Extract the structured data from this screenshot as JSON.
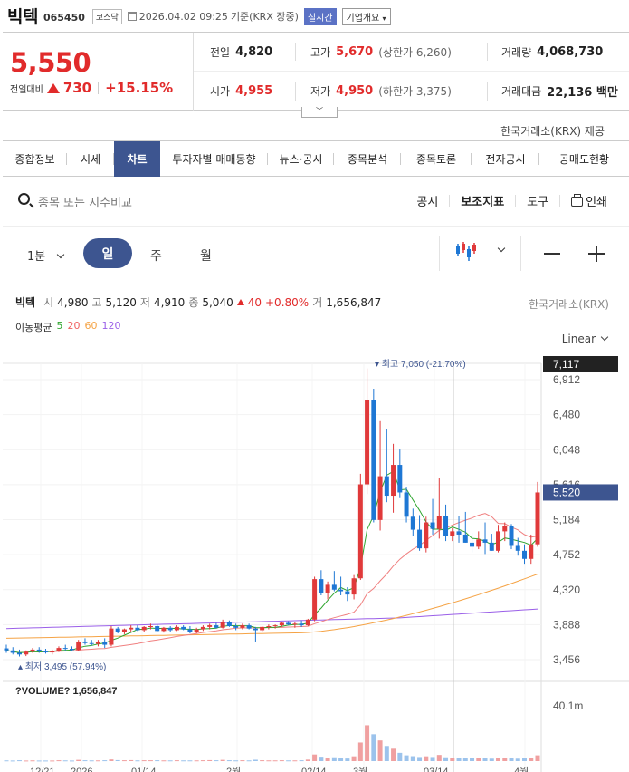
{
  "header": {
    "name": "빅텍",
    "code": "065450",
    "market": "코스닥",
    "datetime": "2026.04.02 09:25",
    "basis": "기준(KRX 장중)",
    "live_label": "실시간",
    "corp_label": "기업개요"
  },
  "quote": {
    "price": "5,550",
    "change_label": "전일대비",
    "change": "730",
    "change_pct": "+15.15%",
    "prev_label": "전일",
    "prev": "4,820",
    "high_label": "고가",
    "high": "5,670",
    "upper_limit": "(상한가 6,260)",
    "volume_label": "거래량",
    "volume": "4,068,730",
    "open_label": "시가",
    "open": "4,955",
    "low_label": "저가",
    "low": "4,950",
    "lower_limit": "(하한가 3,375)",
    "amount_label": "거래대금",
    "amount": "22,136 백만"
  },
  "provider": "한국거래소(KRX) 제공",
  "tabs": [
    "종합정보",
    "시세",
    "차트",
    "투자자별 매매동향",
    "뉴스·공시",
    "종목분석",
    "종목토론",
    "전자공시",
    "공매도현황"
  ],
  "toolbar": {
    "search_placeholder": "종목 또는 지수비교",
    "notice": "공시",
    "indicator": "보조지표",
    "tools": "도구",
    "print": "인쇄",
    "minute": "1분",
    "day": "일",
    "week": "주",
    "month": "월"
  },
  "info": {
    "name": "빅텍",
    "open_k": "시",
    "open": "4,980",
    "high_k": "고",
    "high": "5,120",
    "low_k": "저",
    "low": "4,910",
    "close_k": "종",
    "close": "5,040",
    "chg": "40",
    "chg_pct": "+0.80%",
    "vol_k": "거",
    "vol": "1,656,847",
    "exchange": "한국거래소(KRX)",
    "ma_label": "이동평균",
    "ma": [
      "5",
      "20",
      "60",
      "120"
    ],
    "scale": "Linear"
  },
  "colors": {
    "up": "#e0393a",
    "down": "#1e77d4",
    "ma5": "#2ea52e",
    "ma20": "#f08080",
    "ma60": "#f5a345",
    "ma120": "#9a5fe8",
    "accent": "#3d5590"
  },
  "chart_data": {
    "type": "candlestick",
    "y_ticks": [
      "6,912",
      "6,480",
      "6,048",
      "5,616",
      "5,184",
      "4,752",
      "4,320",
      "3,888",
      "3,456"
    ],
    "price_labels": {
      "top": "7,117",
      "current": "5,520"
    },
    "high_marker": "최고 7,050 (-21.70%)",
    "low_marker": "최저 3,495 (57.94%)",
    "x_labels": [
      "12/21",
      "2026",
      "01/14",
      "2월",
      "02/14",
      "3월",
      "03/14",
      "4월"
    ],
    "volume_label": "?VOLUME? 1,656,847",
    "volume_tick": "40.1m",
    "candles": [
      [
        3595,
        3640,
        3540,
        3570
      ],
      [
        3570,
        3610,
        3520,
        3540
      ],
      [
        3540,
        3580,
        3495,
        3520
      ],
      [
        3520,
        3570,
        3500,
        3555
      ],
      [
        3555,
        3600,
        3540,
        3580
      ],
      [
        3580,
        3610,
        3540,
        3560
      ],
      [
        3560,
        3590,
        3530,
        3545
      ],
      [
        3545,
        3580,
        3520,
        3560
      ],
      [
        3560,
        3620,
        3550,
        3600
      ],
      [
        3600,
        3640,
        3570,
        3590
      ],
      [
        3590,
        3620,
        3560,
        3575
      ],
      [
        3575,
        3700,
        3560,
        3680
      ],
      [
        3680,
        3720,
        3640,
        3660
      ],
      [
        3660,
        3700,
        3630,
        3650
      ],
      [
        3650,
        3700,
        3620,
        3680
      ],
      [
        3680,
        3720,
        3600,
        3640
      ],
      [
        3640,
        3870,
        3620,
        3840
      ],
      [
        3840,
        3860,
        3780,
        3800
      ],
      [
        3800,
        3840,
        3770,
        3830
      ],
      [
        3830,
        3880,
        3800,
        3850
      ],
      [
        3850,
        3880,
        3810,
        3820
      ],
      [
        3820,
        3870,
        3800,
        3860
      ],
      [
        3860,
        3900,
        3830,
        3870
      ],
      [
        3870,
        3890,
        3800,
        3810
      ],
      [
        3810,
        3860,
        3790,
        3850
      ],
      [
        3850,
        3870,
        3800,
        3820
      ],
      [
        3820,
        3880,
        3810,
        3860
      ],
      [
        3860,
        3880,
        3820,
        3830
      ],
      [
        3830,
        3870,
        3780,
        3800
      ],
      [
        3800,
        3850,
        3780,
        3830
      ],
      [
        3830,
        3880,
        3810,
        3860
      ],
      [
        3860,
        3900,
        3830,
        3880
      ],
      [
        3880,
        3910,
        3840,
        3850
      ],
      [
        3850,
        3950,
        3840,
        3920
      ],
      [
        3920,
        3940,
        3860,
        3870
      ],
      [
        3870,
        3900,
        3820,
        3850
      ],
      [
        3850,
        3900,
        3830,
        3880
      ],
      [
        3880,
        3900,
        3830,
        3840
      ],
      [
        3840,
        3860,
        3680,
        3820
      ],
      [
        3820,
        3870,
        3800,
        3860
      ],
      [
        3860,
        3890,
        3830,
        3870
      ],
      [
        3870,
        3890,
        3840,
        3880
      ],
      [
        3880,
        3920,
        3860,
        3910
      ],
      [
        3910,
        3930,
        3880,
        3890
      ],
      [
        3890,
        3920,
        3850,
        3900
      ],
      [
        3900,
        3940,
        3860,
        3880
      ],
      [
        3880,
        3960,
        3870,
        3950
      ],
      [
        3950,
        4480,
        3930,
        4450
      ],
      [
        4450,
        4560,
        4250,
        4280
      ],
      [
        4280,
        4420,
        4200,
        4380
      ],
      [
        4380,
        4550,
        4300,
        4320
      ],
      [
        4320,
        4480,
        4250,
        4300
      ],
      [
        4300,
        4350,
        4180,
        4260
      ],
      [
        4260,
        4500,
        4200,
        4460
      ],
      [
        4460,
        5750,
        4440,
        5620
      ],
      [
        5620,
        7050,
        5500,
        6660
      ],
      [
        6660,
        6800,
        5150,
        5180
      ],
      [
        5180,
        6400,
        5050,
        5720
      ],
      [
        5720,
        6300,
        5400,
        5480
      ],
      [
        5480,
        6120,
        5270,
        5860
      ],
      [
        5860,
        6050,
        5450,
        5520
      ],
      [
        5520,
        5580,
        5150,
        5220
      ],
      [
        5220,
        5320,
        4980,
        5060
      ],
      [
        5060,
        5240,
        4800,
        4830
      ],
      [
        4830,
        5220,
        4780,
        5150
      ],
      [
        5150,
        5440,
        5000,
        5070
      ],
      [
        5070,
        5700,
        4950,
        5230
      ],
      [
        5230,
        5370,
        4920,
        4980
      ],
      [
        4980,
        5080,
        4920,
        5040
      ],
      [
        5040,
        5230,
        4900,
        5000
      ],
      [
        5000,
        5280,
        4900,
        4900
      ],
      [
        4900,
        5020,
        4780,
        4850
      ],
      [
        4850,
        5040,
        4820,
        4940
      ],
      [
        4940,
        5150,
        4760,
        4900
      ],
      [
        4900,
        5010,
        4800,
        4800
      ],
      [
        4800,
        5120,
        4780,
        5040
      ],
      [
        5040,
        5150,
        4920,
        5110
      ],
      [
        5110,
        5130,
        4820,
        4860
      ],
      [
        4860,
        4960,
        4740,
        4800
      ],
      [
        4800,
        4880,
        4640,
        4700
      ],
      [
        4700,
        5000,
        4640,
        4880
      ],
      [
        4880,
        5650,
        4850,
        5520
      ]
    ],
    "volumes": [
      0.5,
      0.4,
      0.6,
      0.4,
      0.5,
      0.4,
      0.4,
      0.4,
      0.6,
      0.5,
      0.4,
      0.9,
      0.6,
      0.5,
      0.5,
      0.6,
      1.2,
      0.7,
      0.6,
      0.7,
      0.5,
      0.6,
      0.6,
      0.6,
      0.5,
      0.5,
      0.6,
      0.5,
      0.5,
      0.5,
      0.6,
      0.7,
      0.6,
      0.9,
      0.6,
      0.5,
      0.6,
      0.5,
      1.0,
      0.6,
      0.5,
      0.5,
      0.6,
      0.5,
      0.5,
      0.6,
      1.1,
      4.8,
      3.2,
      2.5,
      2.8,
      2.2,
      1.9,
      3.5,
      13.5,
      26.0,
      19.5,
      15.0,
      11.0,
      9.0,
      6.0,
      4.2,
      3.6,
      3.0,
      3.5,
      3.0,
      4.5,
      2.8,
      2.2,
      2.4,
      2.5,
      2.0,
      2.3,
      2.4,
      1.8,
      2.2,
      2.0,
      2.1,
      1.8,
      2.3,
      2.0,
      4.2
    ]
  }
}
